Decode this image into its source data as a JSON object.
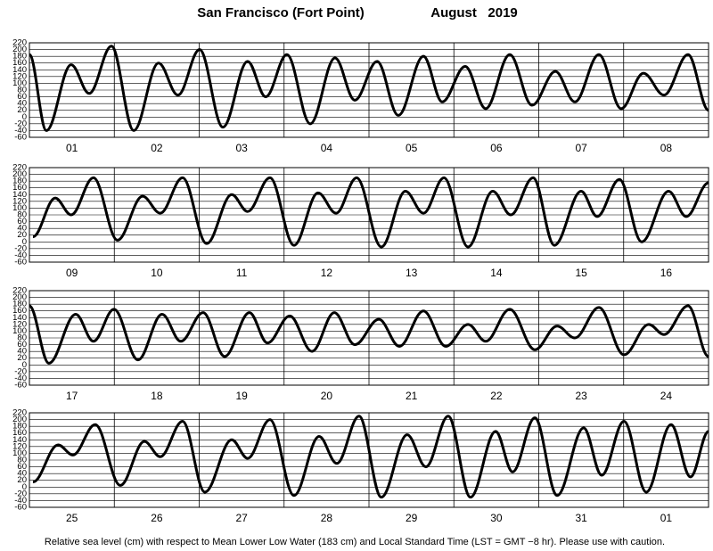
{
  "title": "San Francisco (Fort Point)",
  "date": "August   2019",
  "footnote": "Relative sea level (cm) with respect to Mean Lower Low Water (183 cm) and Local Standard Time (LST = GMT −8 hr). Please use with caution.",
  "chart_data": [
    {
      "type": "line",
      "color": "#000000",
      "categories": [
        "01",
        "02",
        "03",
        "04",
        "05",
        "06",
        "07",
        "08"
      ],
      "xlim": [
        0,
        192
      ],
      "ylim": [
        -60,
        220
      ],
      "yticks": [
        -60,
        -40,
        -20,
        0,
        20,
        40,
        60,
        80,
        100,
        120,
        140,
        160,
        180,
        200,
        220
      ],
      "grid": true,
      "x": [
        0,
        4.8,
        11.8,
        16.9,
        23.2,
        29.5,
        36.5,
        42,
        48.1,
        54.7,
        61.7,
        66.8,
        72.8,
        79.4,
        86.4,
        92,
        98.3,
        104.3,
        111.4,
        116.7,
        123.2,
        129,
        135.8,
        142.1,
        148.7,
        154.2,
        161,
        167.3,
        173.6,
        179.4,
        186.2,
        192
      ],
      "values": [
        185,
        -40,
        155,
        70,
        210,
        -40,
        160,
        65,
        200,
        -30,
        165,
        60,
        185,
        -20,
        175,
        50,
        165,
        5,
        180,
        45,
        150,
        25,
        185,
        35,
        135,
        45,
        185,
        25,
        130,
        65,
        185,
        20
      ]
    },
    {
      "type": "line",
      "color": "#000000",
      "categories": [
        "09",
        "10",
        "11",
        "12",
        "13",
        "14",
        "15",
        "16"
      ],
      "xlim": [
        0,
        192
      ],
      "ylim": [
        -60,
        220
      ],
      "yticks": [
        -60,
        -40,
        -20,
        0,
        20,
        40,
        60,
        80,
        100,
        120,
        140,
        160,
        180,
        200,
        220
      ],
      "grid": true,
      "x": [
        1,
        7.3,
        11.8,
        18.1,
        24.9,
        32,
        37,
        43.3,
        50.1,
        57.2,
        61.7,
        68,
        74.8,
        81.6,
        86.7,
        92.5,
        99.5,
        106.3,
        111.4,
        117.2,
        124,
        131,
        136.1,
        142.4,
        148.4,
        156,
        160.5,
        166.8,
        173.1,
        180.7,
        185.7,
        192
      ],
      "values": [
        15,
        130,
        80,
        190,
        5,
        135,
        85,
        190,
        -5,
        140,
        90,
        190,
        -10,
        145,
        85,
        190,
        -15,
        150,
        85,
        190,
        -15,
        150,
        80,
        190,
        -10,
        150,
        75,
        185,
        0,
        150,
        75,
        175
      ]
    },
    {
      "type": "line",
      "color": "#000000",
      "categories": [
        "17",
        "18",
        "19",
        "20",
        "21",
        "22",
        "23",
        "24"
      ],
      "xlim": [
        0,
        192
      ],
      "ylim": [
        -60,
        220
      ],
      "yticks": [
        -60,
        -40,
        -20,
        0,
        20,
        40,
        60,
        80,
        100,
        120,
        140,
        160,
        180,
        200,
        220
      ],
      "grid": true,
      "x": [
        0,
        5.5,
        13.1,
        18.1,
        23.9,
        30.7,
        37.5,
        42.8,
        49.1,
        55.2,
        62.2,
        67.3,
        73.6,
        79.9,
        86.2,
        92,
        98.8,
        104.6,
        111.4,
        117.7,
        124,
        129,
        135.8,
        142.9,
        149.2,
        154.2,
        161,
        168.1,
        175.1,
        179.4,
        186.2,
        192
      ],
      "values": [
        175,
        5,
        150,
        70,
        165,
        15,
        150,
        70,
        155,
        25,
        155,
        65,
        145,
        40,
        155,
        60,
        135,
        55,
        160,
        55,
        120,
        70,
        165,
        45,
        115,
        80,
        170,
        30,
        120,
        90,
        175,
        25
      ]
    },
    {
      "type": "line",
      "color": "#000000",
      "categories": [
        "25",
        "26",
        "27",
        "28",
        "29",
        "30",
        "31",
        "01"
      ],
      "xlim": [
        0,
        192
      ],
      "ylim": [
        -60,
        220
      ],
      "yticks": [
        -60,
        -40,
        -20,
        0,
        20,
        40,
        60,
        80,
        100,
        120,
        140,
        160,
        180,
        200,
        220
      ],
      "grid": true,
      "x": [
        1,
        8.1,
        12.3,
        18.6,
        25.7,
        32.5,
        37,
        43.3,
        49.6,
        57.2,
        61.7,
        68,
        74.8,
        81.9,
        86.9,
        93.2,
        99.5,
        106.8,
        112.1,
        118.4,
        124.7,
        131.8,
        136.6,
        142.9,
        149.2,
        156.7,
        161.8,
        168.1,
        174.4,
        181.4,
        186.9,
        192
      ],
      "values": [
        15,
        125,
        95,
        185,
        5,
        135,
        90,
        195,
        -15,
        140,
        85,
        200,
        -25,
        150,
        70,
        210,
        -30,
        155,
        60,
        210,
        -30,
        165,
        45,
        205,
        -25,
        175,
        35,
        195,
        -15,
        185,
        30,
        165
      ]
    }
  ]
}
